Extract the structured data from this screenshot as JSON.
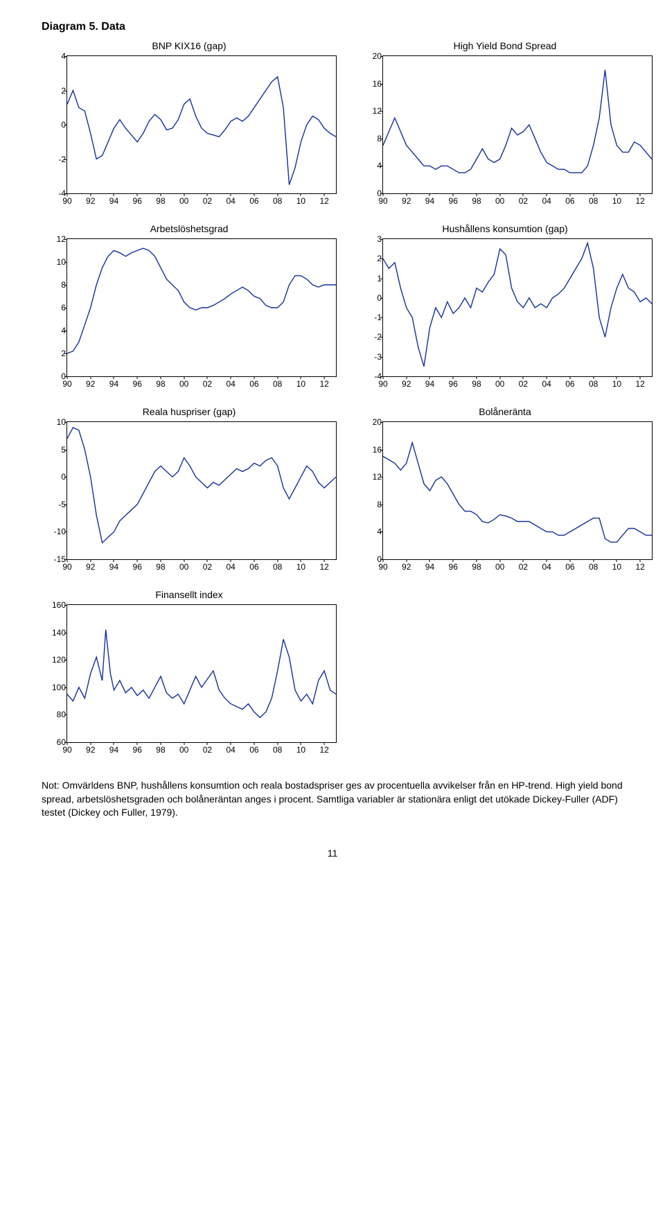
{
  "title": "Diagram 5. Data",
  "line_color": "#142f9b",
  "line_width": 1.4,
  "background_color": "#ffffff",
  "border_color": "#000000",
  "font_family": "Arial",
  "title_fontsize": 16,
  "panel_title_fontsize": 14,
  "tick_fontsize": 12,
  "x_labels": [
    "90",
    "92",
    "94",
    "96",
    "98",
    "00",
    "02",
    "04",
    "06",
    "08",
    "10",
    "12"
  ],
  "panels": [
    {
      "title": "BNP KIX16 (gap)",
      "ylim": [
        -4,
        4
      ],
      "ytick_step": 2,
      "xlim": [
        1990,
        2013
      ],
      "series": [
        [
          1990.0,
          1.2
        ],
        [
          1990.5,
          2.0
        ],
        [
          1991.0,
          1.0
        ],
        [
          1991.5,
          0.8
        ],
        [
          1992.0,
          -0.5
        ],
        [
          1992.5,
          -2.0
        ],
        [
          1993.0,
          -1.8
        ],
        [
          1993.5,
          -1.0
        ],
        [
          1994.0,
          -0.2
        ],
        [
          1994.5,
          0.3
        ],
        [
          1995.0,
          -0.2
        ],
        [
          1995.5,
          -0.6
        ],
        [
          1996.0,
          -1.0
        ],
        [
          1996.5,
          -0.5
        ],
        [
          1997.0,
          0.2
        ],
        [
          1997.5,
          0.6
        ],
        [
          1998.0,
          0.3
        ],
        [
          1998.5,
          -0.3
        ],
        [
          1999.0,
          -0.2
        ],
        [
          1999.5,
          0.3
        ],
        [
          2000.0,
          1.2
        ],
        [
          2000.5,
          1.5
        ],
        [
          2001.0,
          0.5
        ],
        [
          2001.5,
          -0.2
        ],
        [
          2002.0,
          -0.5
        ],
        [
          2002.5,
          -0.6
        ],
        [
          2003.0,
          -0.7
        ],
        [
          2003.5,
          -0.3
        ],
        [
          2004.0,
          0.2
        ],
        [
          2004.5,
          0.4
        ],
        [
          2005.0,
          0.2
        ],
        [
          2005.5,
          0.5
        ],
        [
          2006.0,
          1.0
        ],
        [
          2006.5,
          1.5
        ],
        [
          2007.0,
          2.0
        ],
        [
          2007.5,
          2.5
        ],
        [
          2008.0,
          2.8
        ],
        [
          2008.5,
          1.0
        ],
        [
          2009.0,
          -3.5
        ],
        [
          2009.5,
          -2.5
        ],
        [
          2010.0,
          -1.0
        ],
        [
          2010.5,
          0.0
        ],
        [
          2011.0,
          0.5
        ],
        [
          2011.5,
          0.3
        ],
        [
          2012.0,
          -0.2
        ],
        [
          2012.5,
          -0.5
        ],
        [
          2013.0,
          -0.7
        ]
      ]
    },
    {
      "title": "High Yield Bond Spread",
      "ylim": [
        0,
        20
      ],
      "ytick_step": 4,
      "xlim": [
        1990,
        2013
      ],
      "series": [
        [
          1990.0,
          7
        ],
        [
          1990.5,
          9
        ],
        [
          1991.0,
          11
        ],
        [
          1991.5,
          9
        ],
        [
          1992.0,
          7
        ],
        [
          1992.5,
          6
        ],
        [
          1993.0,
          5
        ],
        [
          1993.5,
          4
        ],
        [
          1994.0,
          4
        ],
        [
          1994.5,
          3.5
        ],
        [
          1995.0,
          4
        ],
        [
          1995.5,
          4
        ],
        [
          1996.0,
          3.5
        ],
        [
          1996.5,
          3
        ],
        [
          1997.0,
          3
        ],
        [
          1997.5,
          3.5
        ],
        [
          1998.0,
          5
        ],
        [
          1998.5,
          6.5
        ],
        [
          1999.0,
          5
        ],
        [
          1999.5,
          4.5
        ],
        [
          2000.0,
          5
        ],
        [
          2000.5,
          7
        ],
        [
          2001.0,
          9.5
        ],
        [
          2001.5,
          8.5
        ],
        [
          2002.0,
          9
        ],
        [
          2002.5,
          10
        ],
        [
          2003.0,
          8
        ],
        [
          2003.5,
          6
        ],
        [
          2004.0,
          4.5
        ],
        [
          2004.5,
          4
        ],
        [
          2005.0,
          3.5
        ],
        [
          2005.5,
          3.5
        ],
        [
          2006.0,
          3
        ],
        [
          2006.5,
          3
        ],
        [
          2007.0,
          3
        ],
        [
          2007.5,
          4
        ],
        [
          2008.0,
          7
        ],
        [
          2008.5,
          11
        ],
        [
          2009.0,
          18
        ],
        [
          2009.5,
          10
        ],
        [
          2010.0,
          7
        ],
        [
          2010.5,
          6
        ],
        [
          2011.0,
          6
        ],
        [
          2011.5,
          7.5
        ],
        [
          2012.0,
          7
        ],
        [
          2012.5,
          6
        ],
        [
          2013.0,
          5
        ]
      ]
    },
    {
      "title": "Arbetslöshetsgrad",
      "ylim": [
        0,
        12
      ],
      "ytick_step": 2,
      "xlim": [
        1990,
        2013
      ],
      "series": [
        [
          1990.0,
          2
        ],
        [
          1990.5,
          2.2
        ],
        [
          1991.0,
          3
        ],
        [
          1991.5,
          4.5
        ],
        [
          1992.0,
          6
        ],
        [
          1992.5,
          8
        ],
        [
          1993.0,
          9.5
        ],
        [
          1993.5,
          10.5
        ],
        [
          1994.0,
          11
        ],
        [
          1994.5,
          10.8
        ],
        [
          1995.0,
          10.5
        ],
        [
          1995.5,
          10.8
        ],
        [
          1996.0,
          11
        ],
        [
          1996.5,
          11.2
        ],
        [
          1997.0,
          11
        ],
        [
          1997.5,
          10.5
        ],
        [
          1998.0,
          9.5
        ],
        [
          1998.5,
          8.5
        ],
        [
          1999.0,
          8
        ],
        [
          1999.5,
          7.5
        ],
        [
          2000.0,
          6.5
        ],
        [
          2000.5,
          6
        ],
        [
          2001.0,
          5.8
        ],
        [
          2001.5,
          6
        ],
        [
          2002.0,
          6
        ],
        [
          2002.5,
          6.2
        ],
        [
          2003.0,
          6.5
        ],
        [
          2003.5,
          6.8
        ],
        [
          2004.0,
          7.2
        ],
        [
          2004.5,
          7.5
        ],
        [
          2005.0,
          7.8
        ],
        [
          2005.5,
          7.5
        ],
        [
          2006.0,
          7
        ],
        [
          2006.5,
          6.8
        ],
        [
          2007.0,
          6.2
        ],
        [
          2007.5,
          6
        ],
        [
          2008.0,
          6
        ],
        [
          2008.5,
          6.5
        ],
        [
          2009.0,
          8
        ],
        [
          2009.5,
          8.8
        ],
        [
          2010.0,
          8.8
        ],
        [
          2010.5,
          8.5
        ],
        [
          2011.0,
          8
        ],
        [
          2011.5,
          7.8
        ],
        [
          2012.0,
          8
        ],
        [
          2012.5,
          8
        ],
        [
          2013.0,
          8
        ]
      ]
    },
    {
      "title": "Hushållens konsumtion (gap)",
      "ylim": [
        -4,
        3
      ],
      "ytick_step": 1,
      "xlim": [
        1990,
        2013
      ],
      "series": [
        [
          1990.0,
          2.0
        ],
        [
          1990.5,
          1.5
        ],
        [
          1991.0,
          1.8
        ],
        [
          1991.5,
          0.5
        ],
        [
          1992.0,
          -0.5
        ],
        [
          1992.5,
          -1.0
        ],
        [
          1993.0,
          -2.5
        ],
        [
          1993.5,
          -3.5
        ],
        [
          1994.0,
          -1.5
        ],
        [
          1994.5,
          -0.5
        ],
        [
          1995.0,
          -1.0
        ],
        [
          1995.5,
          -0.2
        ],
        [
          1996.0,
          -0.8
        ],
        [
          1996.5,
          -0.5
        ],
        [
          1997.0,
          0.0
        ],
        [
          1997.5,
          -0.5
        ],
        [
          1998.0,
          0.5
        ],
        [
          1998.5,
          0.3
        ],
        [
          1999.0,
          0.8
        ],
        [
          1999.5,
          1.2
        ],
        [
          2000.0,
          2.5
        ],
        [
          2000.5,
          2.2
        ],
        [
          2001.0,
          0.5
        ],
        [
          2001.5,
          -0.2
        ],
        [
          2002.0,
          -0.5
        ],
        [
          2002.5,
          0.0
        ],
        [
          2003.0,
          -0.5
        ],
        [
          2003.5,
          -0.3
        ],
        [
          2004.0,
          -0.5
        ],
        [
          2004.5,
          0.0
        ],
        [
          2005.0,
          0.2
        ],
        [
          2005.5,
          0.5
        ],
        [
          2006.0,
          1.0
        ],
        [
          2006.5,
          1.5
        ],
        [
          2007.0,
          2.0
        ],
        [
          2007.5,
          2.8
        ],
        [
          2008.0,
          1.5
        ],
        [
          2008.5,
          -1.0
        ],
        [
          2009.0,
          -2.0
        ],
        [
          2009.5,
          -0.5
        ],
        [
          2010.0,
          0.5
        ],
        [
          2010.5,
          1.2
        ],
        [
          2011.0,
          0.5
        ],
        [
          2011.5,
          0.3
        ],
        [
          2012.0,
          -0.2
        ],
        [
          2012.5,
          0.0
        ],
        [
          2013.0,
          -0.3
        ]
      ]
    },
    {
      "title": "Reala huspriser (gap)",
      "ylim": [
        -15,
        10
      ],
      "ytick_step": 5,
      "xlim": [
        1990,
        2013
      ],
      "series": [
        [
          1990.0,
          7
        ],
        [
          1990.5,
          9
        ],
        [
          1991.0,
          8.5
        ],
        [
          1991.5,
          5
        ],
        [
          1992.0,
          0
        ],
        [
          1992.5,
          -7
        ],
        [
          1993.0,
          -12
        ],
        [
          1993.5,
          -11
        ],
        [
          1994.0,
          -10
        ],
        [
          1994.5,
          -8
        ],
        [
          1995.0,
          -7
        ],
        [
          1995.5,
          -6
        ],
        [
          1996.0,
          -5
        ],
        [
          1996.5,
          -3
        ],
        [
          1997.0,
          -1
        ],
        [
          1997.5,
          1
        ],
        [
          1998.0,
          2
        ],
        [
          1998.5,
          1
        ],
        [
          1999.0,
          0
        ],
        [
          1999.5,
          1
        ],
        [
          2000.0,
          3.5
        ],
        [
          2000.5,
          2
        ],
        [
          2001.0,
          0
        ],
        [
          2001.5,
          -1
        ],
        [
          2002.0,
          -2
        ],
        [
          2002.5,
          -1
        ],
        [
          2003.0,
          -1.5
        ],
        [
          2003.5,
          -0.5
        ],
        [
          2004.0,
          0.5
        ],
        [
          2004.5,
          1.5
        ],
        [
          2005.0,
          1
        ],
        [
          2005.5,
          1.5
        ],
        [
          2006.0,
          2.5
        ],
        [
          2006.5,
          2
        ],
        [
          2007.0,
          3
        ],
        [
          2007.5,
          3.5
        ],
        [
          2008.0,
          2
        ],
        [
          2008.5,
          -2
        ],
        [
          2009.0,
          -4
        ],
        [
          2009.5,
          -2
        ],
        [
          2010.0,
          0
        ],
        [
          2010.5,
          2
        ],
        [
          2011.0,
          1
        ],
        [
          2011.5,
          -1
        ],
        [
          2012.0,
          -2
        ],
        [
          2012.5,
          -1
        ],
        [
          2013.0,
          0
        ]
      ]
    },
    {
      "title": "Bolåneränta",
      "ylim": [
        0,
        20
      ],
      "ytick_step": 4,
      "xlim": [
        1990,
        2013
      ],
      "series": [
        [
          1990.0,
          15
        ],
        [
          1990.5,
          14.5
        ],
        [
          1991.0,
          14
        ],
        [
          1991.5,
          13
        ],
        [
          1992.0,
          14
        ],
        [
          1992.5,
          17
        ],
        [
          1993.0,
          14
        ],
        [
          1993.5,
          11
        ],
        [
          1994.0,
          10
        ],
        [
          1994.5,
          11.5
        ],
        [
          1995.0,
          12
        ],
        [
          1995.5,
          11
        ],
        [
          1996.0,
          9.5
        ],
        [
          1996.5,
          8
        ],
        [
          1997.0,
          7
        ],
        [
          1997.5,
          7
        ],
        [
          1998.0,
          6.5
        ],
        [
          1998.5,
          5.5
        ],
        [
          1999.0,
          5.3
        ],
        [
          1999.5,
          5.8
        ],
        [
          2000.0,
          6.5
        ],
        [
          2000.5,
          6.3
        ],
        [
          2001.0,
          6
        ],
        [
          2001.5,
          5.5
        ],
        [
          2002.0,
          5.5
        ],
        [
          2002.5,
          5.5
        ],
        [
          2003.0,
          5
        ],
        [
          2003.5,
          4.5
        ],
        [
          2004.0,
          4
        ],
        [
          2004.5,
          4
        ],
        [
          2005.0,
          3.5
        ],
        [
          2005.5,
          3.5
        ],
        [
          2006.0,
          4
        ],
        [
          2006.5,
          4.5
        ],
        [
          2007.0,
          5
        ],
        [
          2007.5,
          5.5
        ],
        [
          2008.0,
          6
        ],
        [
          2008.5,
          6
        ],
        [
          2009.0,
          3
        ],
        [
          2009.5,
          2.5
        ],
        [
          2010.0,
          2.5
        ],
        [
          2010.5,
          3.5
        ],
        [
          2011.0,
          4.5
        ],
        [
          2011.5,
          4.5
        ],
        [
          2012.0,
          4
        ],
        [
          2012.5,
          3.5
        ],
        [
          2013.0,
          3.5
        ]
      ]
    },
    {
      "title": "Finansellt index",
      "ylim": [
        60,
        160
      ],
      "ytick_step": 20,
      "xlim": [
        1990,
        2013
      ],
      "series": [
        [
          1990.0,
          95
        ],
        [
          1990.5,
          90
        ],
        [
          1991.0,
          100
        ],
        [
          1991.5,
          92
        ],
        [
          1992.0,
          110
        ],
        [
          1992.5,
          122
        ],
        [
          1993.0,
          105
        ],
        [
          1993.3,
          142
        ],
        [
          1993.7,
          110
        ],
        [
          1994.0,
          98
        ],
        [
          1994.5,
          105
        ],
        [
          1995.0,
          96
        ],
        [
          1995.5,
          100
        ],
        [
          1996.0,
          94
        ],
        [
          1996.5,
          98
        ],
        [
          1997.0,
          92
        ],
        [
          1997.5,
          100
        ],
        [
          1998.0,
          108
        ],
        [
          1998.5,
          96
        ],
        [
          1999.0,
          92
        ],
        [
          1999.5,
          95
        ],
        [
          2000.0,
          88
        ],
        [
          2000.5,
          98
        ],
        [
          2001.0,
          108
        ],
        [
          2001.5,
          100
        ],
        [
          2002.0,
          106
        ],
        [
          2002.5,
          112
        ],
        [
          2003.0,
          98
        ],
        [
          2003.5,
          92
        ],
        [
          2004.0,
          88
        ],
        [
          2004.5,
          86
        ],
        [
          2005.0,
          84
        ],
        [
          2005.5,
          88
        ],
        [
          2006.0,
          82
        ],
        [
          2006.5,
          78
        ],
        [
          2007.0,
          82
        ],
        [
          2007.5,
          92
        ],
        [
          2008.0,
          112
        ],
        [
          2008.5,
          135
        ],
        [
          2009.0,
          122
        ],
        [
          2009.5,
          98
        ],
        [
          2010.0,
          90
        ],
        [
          2010.5,
          95
        ],
        [
          2011.0,
          88
        ],
        [
          2011.5,
          105
        ],
        [
          2012.0,
          112
        ],
        [
          2012.5,
          98
        ],
        [
          2013.0,
          95
        ]
      ]
    }
  ],
  "footnote": "Not: Omvärldens BNP, hushållens konsumtion och reala bostadspriser ges av procentuella avvikelser från en HP-trend. High yield bond spread, arbetslöshetsgraden och bolåneräntan anges i procent. Samtliga variabler är stationära enligt det utökade Dickey-Fuller (ADF) testet (Dickey och Fuller, 1979).",
  "page_number": "11"
}
